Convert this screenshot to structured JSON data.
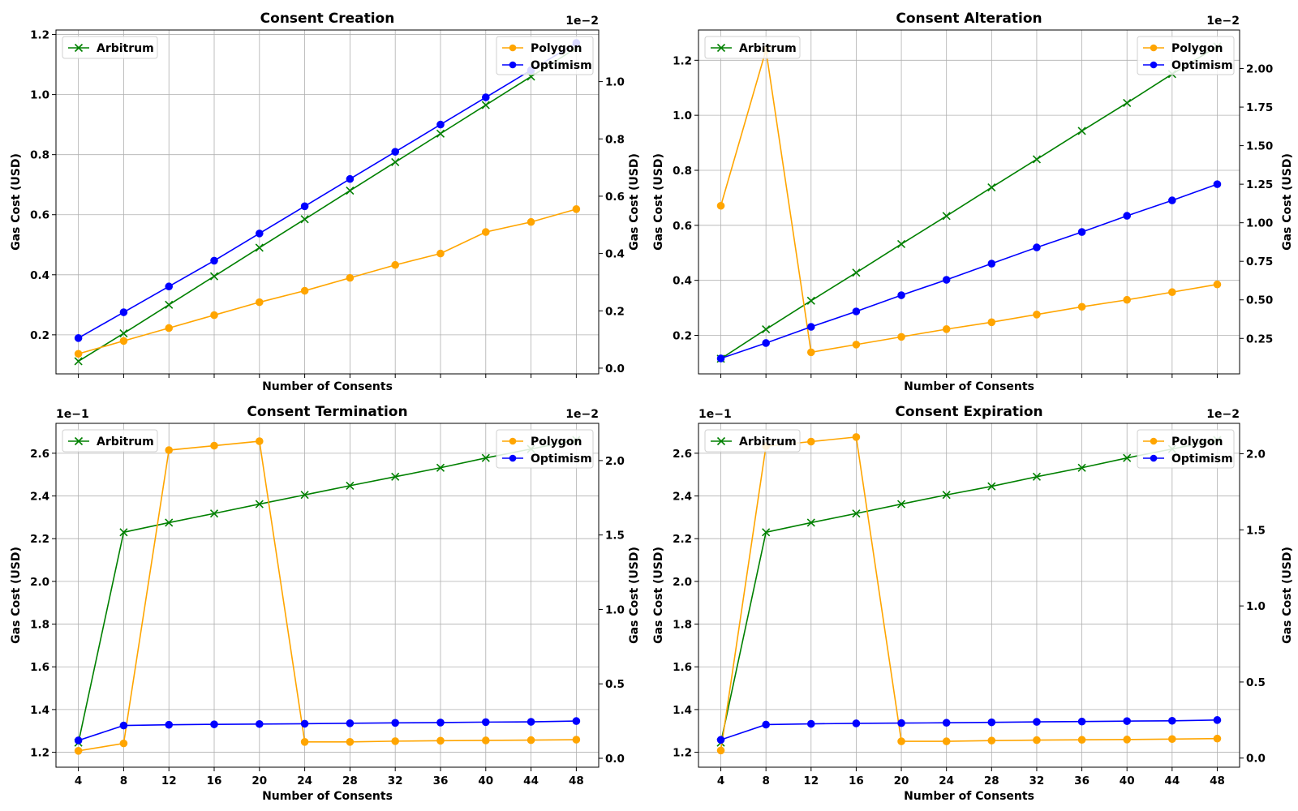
{
  "colors": {
    "arbitrum": "#008000",
    "polygon": "#FFA500",
    "optimism": "#0000FF",
    "grid": "#b0b0b0"
  },
  "chart_data": [
    {
      "type": "line",
      "title": "Consent Creation",
      "xlabel": "Number of Consents",
      "ylabel_left": "Gas Cost (USD)",
      "ylabel_right": "Gas Cost (USD)",
      "x": [
        4,
        8,
        12,
        16,
        20,
        24,
        28,
        32,
        36,
        40,
        44,
        48
      ],
      "x_tick_labels_visible": false,
      "left_axis": {
        "ylim": [
          0.07,
          1.215
        ],
        "ticks": [
          "0.2",
          "0.4",
          "0.6",
          "0.8",
          "1.0",
          "1.2"
        ],
        "multiplier": ""
      },
      "right_axis": {
        "ylim": [
          -0.02,
          1.18
        ],
        "ticks": [
          "0.0",
          "0.2",
          "0.4",
          "0.6",
          "0.8",
          "1.0"
        ],
        "multiplier": "1e−2"
      },
      "series": [
        {
          "name": "Arbitrum",
          "axis": "left",
          "marker": "x",
          "values": [
            0.112,
            0.205,
            0.3,
            0.395,
            0.49,
            0.585,
            0.68,
            0.775,
            0.87,
            0.965,
            1.06,
            1.155
          ]
        },
        {
          "name": "Polygon",
          "axis": "right",
          "marker": "o",
          "values": [
            0.05,
            0.095,
            0.14,
            0.185,
            0.23,
            0.27,
            0.315,
            0.36,
            0.4,
            0.475,
            0.51,
            0.555
          ]
        },
        {
          "name": "Optimism",
          "axis": "right",
          "marker": "o",
          "values": [
            0.105,
            0.195,
            0.285,
            0.375,
            0.47,
            0.565,
            0.66,
            0.755,
            0.85,
            0.945,
            1.04,
            1.135
          ]
        }
      ],
      "legend_left": [
        "Arbitrum"
      ],
      "legend_right": [
        "Polygon",
        "Optimism"
      ]
    },
    {
      "type": "line",
      "title": "Consent Alteration",
      "xlabel": "Number of Consents",
      "ylabel_left": "Gas Cost (USD)",
      "ylabel_right": "Gas Cost (USD)",
      "x": [
        4,
        8,
        12,
        16,
        20,
        24,
        28,
        32,
        36,
        40,
        44,
        48
      ],
      "x_tick_labels_visible": false,
      "left_axis": {
        "ylim": [
          0.06,
          1.31
        ],
        "ticks": [
          "0.2",
          "0.4",
          "0.6",
          "0.8",
          "1.0",
          "1.2"
        ],
        "multiplier": ""
      },
      "right_axis": {
        "ylim": [
          0.02,
          2.25
        ],
        "ticks": [
          "0.25",
          "0.50",
          "0.75",
          "1.00",
          "1.25",
          "1.50",
          "1.75",
          "2.00"
        ],
        "multiplier": "1e−2"
      },
      "series": [
        {
          "name": "Arbitrum",
          "axis": "left",
          "marker": "x",
          "values": [
            0.115,
            0.222,
            0.326,
            0.428,
            0.532,
            0.634,
            0.738,
            0.84,
            0.943,
            1.045,
            1.15,
            1.25
          ]
        },
        {
          "name": "Polygon",
          "axis": "right",
          "marker": "o",
          "values": [
            1.11,
            2.12,
            0.16,
            0.21,
            0.26,
            0.31,
            0.355,
            0.405,
            0.455,
            0.5,
            0.55,
            0.6
          ]
        },
        {
          "name": "Optimism",
          "axis": "right",
          "marker": "o",
          "values": [
            0.12,
            0.22,
            0.325,
            0.425,
            0.53,
            0.63,
            0.735,
            0.84,
            0.94,
            1.045,
            1.145,
            1.25
          ]
        }
      ],
      "legend_left": [
        "Arbitrum"
      ],
      "legend_right": [
        "Polygon",
        "Optimism"
      ]
    },
    {
      "type": "line",
      "title": "Consent Termination",
      "xlabel": "Number of Consents",
      "ylabel_left": "Gas Cost (USD)",
      "ylabel_right": "Gas Cost (USD)",
      "x": [
        4,
        8,
        12,
        16,
        20,
        24,
        28,
        32,
        36,
        40,
        44,
        48
      ],
      "x_tick_labels_visible": true,
      "left_axis": {
        "ylim": [
          1.13,
          2.74
        ],
        "ticks": [
          "1.2",
          "1.4",
          "1.6",
          "1.8",
          "2.0",
          "2.2",
          "2.4",
          "2.6"
        ],
        "multiplier": "1e−1"
      },
      "right_axis": {
        "ylim": [
          -0.06,
          2.25
        ],
        "ticks": [
          "0.0",
          "0.5",
          "1.0",
          "1.5",
          "2.0"
        ],
        "multiplier": "1e−2"
      },
      "series": [
        {
          "name": "Arbitrum",
          "axis": "left",
          "marker": "x",
          "values": [
            1.245,
            2.23,
            2.275,
            2.318,
            2.362,
            2.405,
            2.448,
            2.49,
            2.532,
            2.578,
            2.62,
            2.662
          ]
        },
        {
          "name": "Polygon",
          "axis": "right",
          "marker": "o",
          "values": [
            0.05,
            0.1,
            2.07,
            2.1,
            2.13,
            0.11,
            0.11,
            0.115,
            0.118,
            0.12,
            0.122,
            0.125
          ]
        },
        {
          "name": "Optimism",
          "axis": "right",
          "marker": "o",
          "values": [
            0.12,
            0.22,
            0.225,
            0.228,
            0.23,
            0.232,
            0.235,
            0.238,
            0.24,
            0.243,
            0.245,
            0.25
          ]
        }
      ],
      "legend_left": [
        "Arbitrum"
      ],
      "legend_right": [
        "Polygon",
        "Optimism"
      ]
    },
    {
      "type": "line",
      "title": "Consent Expiration",
      "xlabel": "Number of Consents",
      "ylabel_left": "Gas Cost (USD)",
      "ylabel_right": "Gas Cost (USD)",
      "x": [
        4,
        8,
        12,
        16,
        20,
        24,
        28,
        32,
        36,
        40,
        44,
        48
      ],
      "x_tick_labels_visible": true,
      "left_axis": {
        "ylim": [
          1.13,
          2.74
        ],
        "ticks": [
          "1.2",
          "1.4",
          "1.6",
          "1.8",
          "2.0",
          "2.2",
          "2.4",
          "2.6"
        ],
        "multiplier": "1e−1"
      },
      "right_axis": {
        "ylim": [
          -0.06,
          2.2
        ],
        "ticks": [
          "0.0",
          "0.5",
          "1.0",
          "1.5",
          "2.0"
        ],
        "multiplier": "1e−2"
      },
      "series": [
        {
          "name": "Arbitrum",
          "axis": "left",
          "marker": "x",
          "values": [
            1.245,
            2.23,
            2.275,
            2.318,
            2.362,
            2.405,
            2.445,
            2.49,
            2.532,
            2.578,
            2.62,
            2.662
          ]
        },
        {
          "name": "Polygon",
          "axis": "right",
          "marker": "o",
          "values": [
            0.05,
            2.05,
            2.08,
            2.11,
            0.11,
            0.11,
            0.115,
            0.118,
            0.12,
            0.122,
            0.125,
            0.128
          ]
        },
        {
          "name": "Optimism",
          "axis": "right",
          "marker": "o",
          "values": [
            0.12,
            0.22,
            0.225,
            0.228,
            0.23,
            0.232,
            0.235,
            0.238,
            0.24,
            0.243,
            0.245,
            0.25
          ]
        }
      ],
      "legend_left": [
        "Arbitrum"
      ],
      "legend_right": [
        "Polygon",
        "Optimism"
      ]
    }
  ]
}
